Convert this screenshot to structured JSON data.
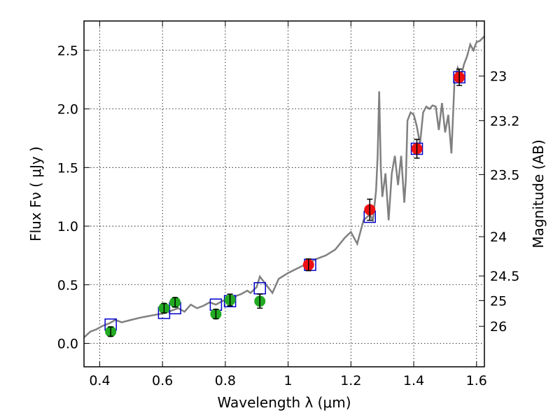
{
  "chart_data": {
    "type": "scatter",
    "xlabel": "Wavelength  λ (μm)",
    "ylabel": "Flux  Fν  ( μJy )",
    "ylabel_right": "Magnitude (AB)",
    "xlim": [
      0.35,
      1.625
    ],
    "ylim": [
      -0.2,
      2.75
    ],
    "x_ticks": [
      0.4,
      0.6,
      0.8,
      1.0,
      1.2,
      1.4,
      1.6
    ],
    "x_tick_labels": [
      "0.4",
      "0.6",
      "0.8",
      "1",
      "1.2",
      "1.4",
      "1.6"
    ],
    "y_ticks": [
      0.0,
      0.5,
      1.0,
      1.5,
      2.0,
      2.5
    ],
    "y_tick_labels": [
      "0.0",
      "0.5",
      "1.0",
      "1.5",
      "2.0",
      "2.5"
    ],
    "right_ticks": [
      {
        "flux": 2.28,
        "label": "23"
      },
      {
        "flux": 1.9,
        "label": "23.2"
      },
      {
        "flux": 1.44,
        "label": "23.5"
      },
      {
        "flux": 0.91,
        "label": "24"
      },
      {
        "flux": 0.575,
        "label": "24.5"
      },
      {
        "flux": 0.365,
        "label": "25"
      },
      {
        "flux": 0.145,
        "label": "26"
      }
    ],
    "grid": true,
    "colors": {
      "model": "#808080",
      "optical_points": "#22aa22",
      "nir_points": "#ee1111",
      "model_squares": "#0000cc",
      "error_bars": "#000000",
      "axis": "#000000"
    },
    "series": [
      {
        "kind": "line",
        "x": [
          0.35,
          0.37,
          0.39,
          0.41,
          0.43,
          0.45,
          0.47,
          0.5,
          0.53,
          0.55,
          0.57,
          0.59,
          0.61,
          0.63,
          0.65,
          0.67,
          0.69,
          0.71,
          0.73,
          0.75,
          0.77,
          0.79,
          0.81,
          0.83,
          0.85,
          0.87,
          0.88,
          0.9,
          0.91,
          0.93,
          0.95,
          0.97,
          1.0,
          1.03,
          1.06,
          1.09,
          1.12,
          1.15,
          1.18,
          1.2,
          1.22,
          1.24,
          1.26,
          1.27,
          1.28,
          1.285,
          1.29,
          1.295,
          1.3,
          1.31,
          1.32,
          1.33,
          1.34,
          1.35,
          1.36,
          1.37,
          1.375,
          1.38,
          1.39,
          1.4,
          1.41,
          1.42,
          1.43,
          1.44,
          1.45,
          1.46,
          1.47,
          1.48,
          1.49,
          1.5,
          1.51,
          1.52,
          1.53,
          1.54,
          1.55,
          1.56,
          1.57,
          1.58,
          1.59,
          1.6,
          1.61,
          1.625
        ],
        "y": [
          0.05,
          0.1,
          0.12,
          0.15,
          0.17,
          0.2,
          0.18,
          0.2,
          0.22,
          0.23,
          0.24,
          0.25,
          0.26,
          0.28,
          0.3,
          0.27,
          0.33,
          0.3,
          0.32,
          0.35,
          0.33,
          0.36,
          0.38,
          0.4,
          0.42,
          0.45,
          0.43,
          0.48,
          0.57,
          0.5,
          0.43,
          0.55,
          0.6,
          0.64,
          0.68,
          0.72,
          0.75,
          0.8,
          0.9,
          0.95,
          0.85,
          1.05,
          1.1,
          1.05,
          1.3,
          1.6,
          2.15,
          1.5,
          1.25,
          1.45,
          1.05,
          1.45,
          1.6,
          1.35,
          1.6,
          1.2,
          1.4,
          1.9,
          1.97,
          1.95,
          1.85,
          1.7,
          1.97,
          2.02,
          2.0,
          2.03,
          2.02,
          1.82,
          2.05,
          1.8,
          1.95,
          1.62,
          2.25,
          2.35,
          2.27,
          2.38,
          2.45,
          2.55,
          2.5,
          2.57,
          2.58,
          2.62
        ]
      },
      {
        "kind": "model-squares",
        "x": [
          0.435,
          0.605,
          0.64,
          0.77,
          0.815,
          0.91,
          1.07,
          1.26,
          1.41,
          1.545
        ],
        "y": [
          0.16,
          0.26,
          0.3,
          0.33,
          0.36,
          0.47,
          0.67,
          1.08,
          1.66,
          2.27
        ]
      },
      {
        "kind": "optical-photometry",
        "x": [
          0.435,
          0.605,
          0.64,
          0.77,
          0.815,
          0.91
        ],
        "y": [
          0.1,
          0.3,
          0.35,
          0.25,
          0.37,
          0.36
        ],
        "yerr": [
          0.04,
          0.04,
          0.04,
          0.04,
          0.05,
          0.06
        ]
      },
      {
        "kind": "nir-photometry",
        "x": [
          1.065,
          1.26,
          1.41,
          1.545
        ],
        "y": [
          0.67,
          1.14,
          1.66,
          2.27
        ],
        "yerr": [
          0.05,
          0.09,
          0.08,
          0.07
        ]
      }
    ]
  }
}
